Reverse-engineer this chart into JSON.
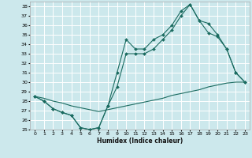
{
  "xlabel": "Humidex (Indice chaleur)",
  "bg_color": "#cce8ec",
  "grid_color": "#ffffff",
  "line_color": "#1a6b60",
  "xlim": [
    -0.5,
    23.5
  ],
  "ylim": [
    25,
    38.5
  ],
  "xticks": [
    0,
    1,
    2,
    3,
    4,
    5,
    6,
    7,
    8,
    9,
    10,
    11,
    12,
    13,
    14,
    15,
    16,
    17,
    18,
    19,
    20,
    21,
    22,
    23
  ],
  "yticks": [
    25,
    26,
    27,
    28,
    29,
    30,
    31,
    32,
    33,
    34,
    35,
    36,
    37,
    38
  ],
  "line1_x": [
    0,
    1,
    2,
    3,
    4,
    5,
    6,
    7,
    8,
    9,
    10,
    11,
    12,
    13,
    14,
    15,
    16,
    17,
    18,
    19,
    20,
    21,
    22,
    23
  ],
  "line1_y": [
    28.5,
    28.0,
    27.2,
    26.8,
    26.5,
    25.2,
    25.0,
    25.2,
    27.5,
    31.0,
    34.5,
    33.5,
    33.5,
    34.5,
    35.0,
    36.0,
    37.5,
    38.2,
    36.5,
    36.2,
    35.0,
    33.5,
    31.0,
    30.0
  ],
  "line2_x": [
    0,
    1,
    2,
    3,
    4,
    5,
    6,
    7,
    8,
    9,
    10,
    11,
    12,
    13,
    14,
    15,
    16,
    17,
    18,
    19,
    20,
    21,
    22,
    23
  ],
  "line2_y": [
    28.5,
    28.0,
    27.2,
    26.8,
    26.5,
    25.2,
    25.0,
    25.2,
    27.5,
    29.5,
    33.0,
    33.0,
    33.0,
    33.5,
    34.5,
    35.5,
    37.0,
    38.2,
    36.5,
    35.2,
    34.8,
    33.5,
    31.0,
    30.0
  ],
  "line3_x": [
    0,
    1,
    2,
    3,
    4,
    5,
    6,
    7,
    8,
    9,
    10,
    11,
    12,
    13,
    14,
    15,
    16,
    17,
    18,
    19,
    20,
    21,
    22,
    23
  ],
  "line3_y": [
    28.5,
    28.3,
    28.0,
    27.8,
    27.5,
    27.3,
    27.1,
    26.9,
    27.1,
    27.3,
    27.5,
    27.7,
    27.9,
    28.1,
    28.3,
    28.6,
    28.8,
    29.0,
    29.2,
    29.5,
    29.7,
    29.9,
    30.0,
    30.0
  ]
}
